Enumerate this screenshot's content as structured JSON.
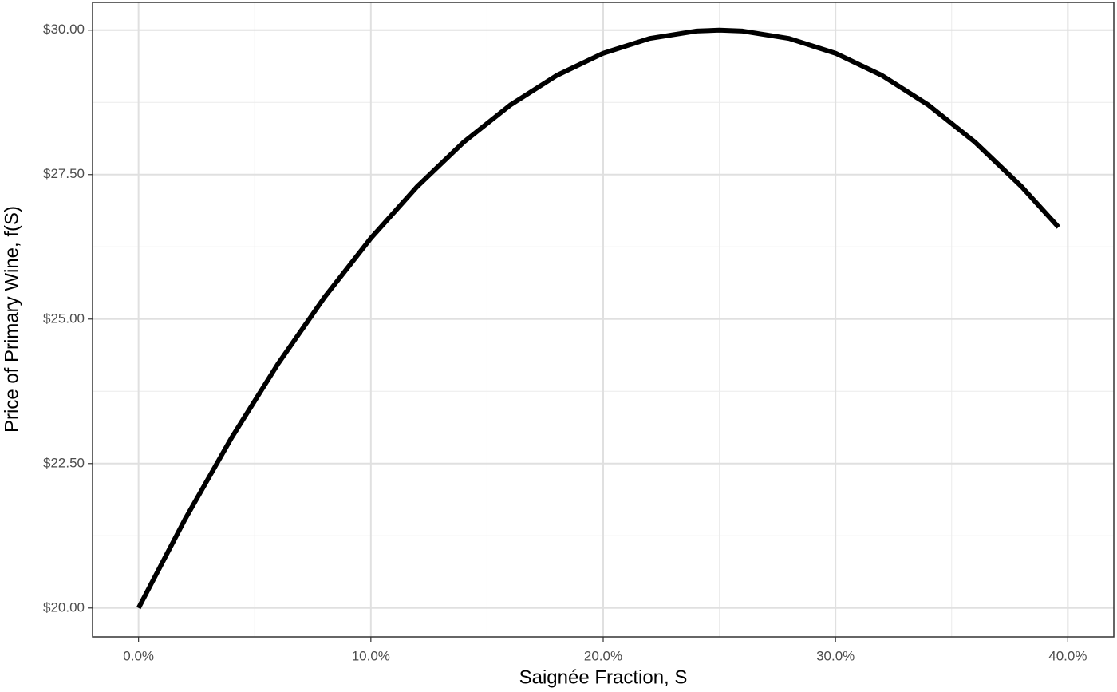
{
  "chart_data": {
    "type": "line",
    "x_label": "Saignée Fraction, S",
    "y_label": "Price of Primary Wine, f(S)",
    "x": [
      0,
      2,
      4,
      6,
      8,
      10,
      12,
      14,
      16,
      18,
      20,
      22,
      24,
      25,
      26,
      28,
      30,
      32,
      34,
      36,
      38,
      39.6
    ],
    "series": [
      {
        "color": "#000000",
        "values": [
          20,
          21.536,
          22.944,
          24.224,
          25.376,
          26.4,
          27.296,
          28.064,
          28.704,
          29.216,
          29.6,
          29.856,
          29.984,
          30,
          29.984,
          29.856,
          29.6,
          29.216,
          28.704,
          28.064,
          27.296,
          26.59
        ]
      }
    ],
    "xlim": [
      -1.98,
      41.98
    ],
    "ylim": [
      19.5,
      30.48
    ],
    "xticks": [
      {
        "value": 0,
        "label": "0.0%"
      },
      {
        "value": 10,
        "label": "10.0%"
      },
      {
        "value": 20,
        "label": "20.0%"
      },
      {
        "value": 30,
        "label": "30.0%"
      },
      {
        "value": 40,
        "label": "40.0%"
      }
    ],
    "yticks": [
      {
        "value": 20,
        "label": "$20.00"
      },
      {
        "value": 22.5,
        "label": "$22.50"
      },
      {
        "value": 25,
        "label": "$25.00"
      },
      {
        "value": 27.5,
        "label": "$27.50"
      },
      {
        "value": 30,
        "label": "$30.00"
      }
    ],
    "grid": true
  }
}
